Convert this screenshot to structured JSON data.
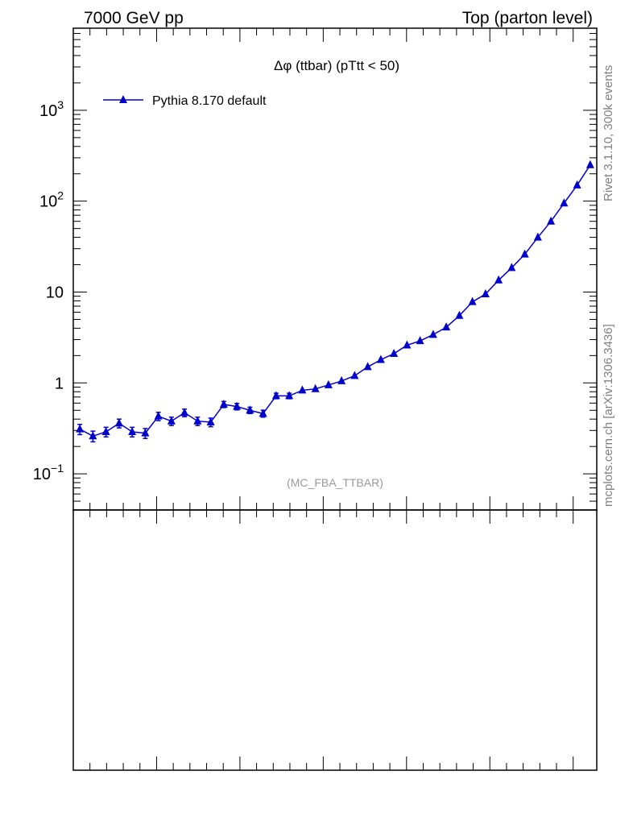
{
  "header": {
    "left": "7000 GeV pp",
    "right": "Top (parton level)"
  },
  "side_labels": {
    "rivet": "Rivet 3.1.10,  300k events",
    "mcplots": "mcplots.cern.ch [arXiv:1306.3436]"
  },
  "watermark": "(MC_FBA_TTBAR)",
  "colors": {
    "series": "#0000cc",
    "frame": "#000000",
    "watermark": "#999999",
    "side_text": "#808080"
  },
  "chart_data": {
    "type": "line",
    "title": "Δφ (ttbar) (pTtt < 50)",
    "xlabel": "",
    "ylabel": "",
    "yscale": "log",
    "xlim": [
      0,
      3.1416
    ],
    "ylim": [
      0.04,
      8000
    ],
    "ytick_labels": [
      {
        "value": 0.1,
        "base": "10",
        "exp": "−1"
      },
      {
        "value": 1,
        "base": "1",
        "exp": ""
      },
      {
        "value": 10,
        "base": "10",
        "exp": ""
      },
      {
        "value": 100,
        "base": "10",
        "exp": "2"
      },
      {
        "value": 1000,
        "base": "10",
        "exp": "3"
      }
    ],
    "legend": {
      "position": "top-left"
    },
    "marker": "triangle-up",
    "series": [
      {
        "name": "Pythia 8.170 default",
        "x": [
          0.0393,
          0.1178,
          0.1963,
          0.2749,
          0.3534,
          0.432,
          0.5105,
          0.589,
          0.6676,
          0.7461,
          0.8247,
          0.9032,
          0.9817,
          1.0603,
          1.1388,
          1.2174,
          1.2959,
          1.3744,
          1.453,
          1.5315,
          1.6101,
          1.6886,
          1.7671,
          1.8457,
          1.9242,
          2.0028,
          2.0813,
          2.1598,
          2.2384,
          2.3169,
          2.3955,
          2.474,
          2.5525,
          2.6311,
          2.7096,
          2.7882,
          2.8667,
          2.9452,
          3.0238,
          3.1023
        ],
        "y": [
          0.31,
          0.26,
          0.29,
          0.36,
          0.29,
          0.28,
          0.43,
          0.38,
          0.47,
          0.38,
          0.37,
          0.58,
          0.55,
          0.5,
          0.46,
          0.72,
          0.72,
          0.83,
          0.86,
          0.95,
          1.05,
          1.2,
          1.5,
          1.8,
          2.1,
          2.6,
          2.9,
          3.4,
          4.1,
          5.5,
          7.8,
          9.5,
          13.5,
          18.5,
          26,
          40,
          60,
          95,
          150,
          250
        ],
        "yerr": [
          0.04,
          0.035,
          0.035,
          0.04,
          0.035,
          0.035,
          0.045,
          0.04,
          0.045,
          0.04,
          0.04,
          0.045,
          0.045,
          0.04,
          0.04,
          0.05,
          0.05,
          0.05,
          0.05,
          0.05,
          0.05,
          0.06,
          0.06,
          0.07,
          0.07,
          0.08,
          0.09,
          0.1,
          0.12,
          0.15,
          0.2,
          0.25,
          0.3,
          0.4,
          0.5,
          0.8,
          1.1,
          1.6,
          2.5,
          4
        ]
      }
    ]
  }
}
